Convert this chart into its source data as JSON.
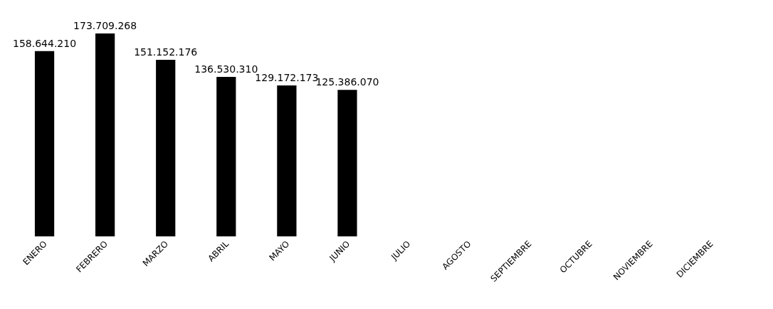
{
  "chart_data": {
    "type": "bar",
    "categories": [
      "ENERO",
      "FEBRERO",
      "MARZO",
      "ABRIL",
      "MAYO",
      "JUNIO",
      "JULIO",
      "AGOSTO",
      "SEPTIEMBRE",
      "OCTUBRE",
      "NOVIEMBRE",
      "DICIEMBRE"
    ],
    "values": [
      158644210,
      173709268,
      151152176,
      136530310,
      129172173,
      125386070,
      null,
      null,
      null,
      null,
      null,
      null
    ],
    "value_labels": [
      "158.644.210",
      "173.709.268",
      "151.152.176",
      "136.530.310",
      "129.172.173",
      "125.386.070",
      null,
      null,
      null,
      null,
      null,
      null
    ],
    "color": "#000000",
    "grid": false,
    "legend": false,
    "tick_labels": "x"
  }
}
